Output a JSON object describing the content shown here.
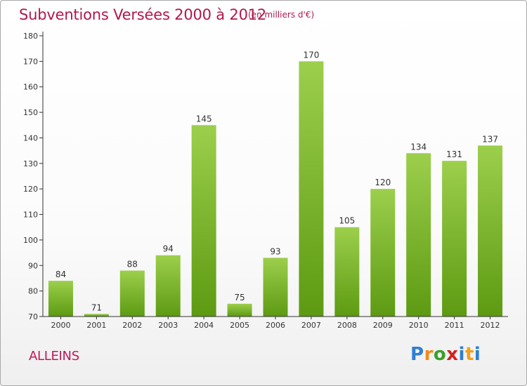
{
  "title": "Subventions Versées 2000 à 2012",
  "subtitle": "(en milliers d'€)",
  "commune": "ALLEINS",
  "logo": {
    "text": "Proxiti"
  },
  "colors": {
    "title": "#b0184c",
    "bar_light": "#9ccf4c",
    "bar_dark": "#5d9a12",
    "axis": "#333333"
  },
  "chart_data": {
    "type": "bar",
    "title": "Subventions Versées 2000 à 2012",
    "subtitle": "(en milliers d'€)",
    "categories": [
      "2000",
      "2001",
      "2002",
      "2003",
      "2004",
      "2005",
      "2006",
      "2007",
      "2008",
      "2009",
      "2010",
      "2011",
      "2012"
    ],
    "values": [
      84,
      71,
      88,
      94,
      145,
      75,
      93,
      170,
      105,
      120,
      134,
      131,
      137
    ],
    "ylim": [
      70,
      180
    ],
    "yticks": [
      70,
      80,
      90,
      100,
      110,
      120,
      130,
      140,
      150,
      160,
      170,
      180
    ],
    "grid": false,
    "data_labels": true
  }
}
